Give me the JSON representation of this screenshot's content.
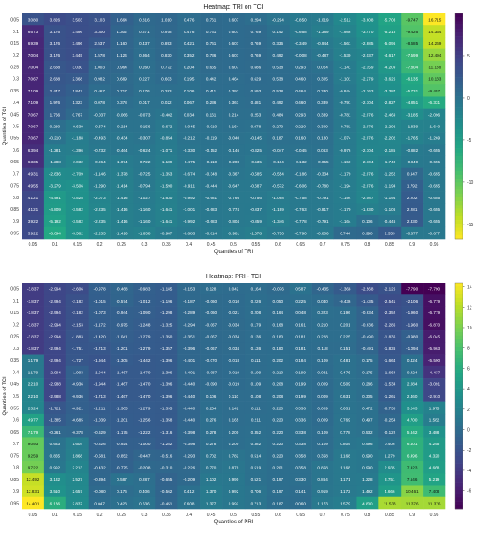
{
  "chart_data": [
    {
      "type": "heatmap",
      "title": "Heatmap: TRI on TCI",
      "xlabel": "Quantiles of TRI",
      "ylabel": "Quantiles of TCI",
      "x": [
        "0.05",
        "0.1",
        "0.15",
        "0.2",
        "0.25",
        "0.3",
        "0.35",
        "0.4",
        "0.45",
        "0.5",
        "0.55",
        "0.6",
        "0.65",
        "0.7",
        "0.75",
        "0.8",
        "0.85",
        "0.9",
        "0.95"
      ],
      "y": [
        "0.05",
        "0.1",
        "0.15",
        "0.2",
        "0.25",
        "0.3",
        "0.35",
        "0.4",
        "0.45",
        "0.5",
        "0.55",
        "0.6",
        "0.65",
        "0.7",
        "0.75",
        "0.8",
        "0.85",
        "0.9",
        "0.95"
      ],
      "colorbar_ticks": [
        5,
        0,
        -5,
        -10,
        -15
      ],
      "colorscale": "viridis_r",
      "zlim": [
        -16.715,
        10
      ],
      "values": [
        [
          3.08,
          3.826,
          3.503,
          3.103,
          1.664,
          0.816,
          1.01,
          0.476,
          0.761,
          0.607,
          0.294,
          -0.294,
          -0.85,
          -1.019,
          -2.512,
          -3.608,
          -5.703,
          -9.747,
          -16.715
        ],
        [
          6.673,
          3.176,
          3.496,
          3.3,
          1.302,
          0.671,
          0.978,
          0.476,
          0.761,
          0.607,
          0.769,
          0.142,
          -0.668,
          -1.389,
          -1.986,
          -3.47,
          -5.218,
          -9.426,
          -14.364
        ],
        [
          6.939,
          3.176,
          3.496,
          2.537,
          1.16,
          0.437,
          0.893,
          0.421,
          0.761,
          0.607,
          0.769,
          0.336,
          -0.349,
          -0.944,
          -1.561,
          -2.885,
          -5.096,
          -8.685,
          -14.269
        ],
        [
          7.004,
          3.176,
          3.445,
          1.578,
          1.124,
          0.364,
          0.83,
          0.352,
          0.736,
          0.607,
          0.769,
          0.492,
          -0.008,
          -0.487,
          -1.53,
          -2.037,
          -4.617,
          -7.599,
          -12.494
        ],
        [
          7.004,
          2.688,
          3.03,
          1.003,
          0.964,
          0.26,
          0.772,
          0.204,
          0.665,
          0.607,
          0.686,
          0.538,
          0.293,
          0.024,
          -1.141,
          -2.359,
          -4.209,
          -7.804,
          -11.188
        ],
        [
          7.067,
          2.688,
          2.368,
          0.982,
          0.689,
          0.227,
          0.603,
          0.195,
          0.442,
          0.464,
          0.629,
          0.538,
          0.46,
          0.305,
          -1.101,
          -2.279,
          -3.626,
          -6.135,
          -10.133
        ],
        [
          7.109,
          2.447,
          1.847,
          0.467,
          0.717,
          0.176,
          0.283,
          0.106,
          0.411,
          0.397,
          0.593,
          0.538,
          0.464,
          0.33,
          -0.844,
          -2.163,
          -3.387,
          -5.731,
          -9.457
        ],
        [
          7.109,
          1.976,
          1.323,
          0.078,
          0.378,
          0.017,
          0.022,
          0.067,
          0.236,
          0.361,
          0.481,
          0.492,
          0.46,
          0.339,
          -0.791,
          -2.104,
          -2.827,
          -4.851,
          -6.331
        ],
        [
          7.067,
          1.766,
          0.767,
          -0.037,
          -0.066,
          -0.073,
          -0.402,
          0.034,
          0.161,
          0.214,
          0.253,
          0.484,
          0.293,
          0.339,
          -0.781,
          -2.076,
          -2.469,
          -3.185,
          -2.096
        ],
        [
          7.067,
          0.28,
          -0.63,
          -0.374,
          -0.214,
          -0.156,
          -0.672,
          -0.045,
          -0.01,
          0.164,
          0.078,
          0.27,
          0.22,
          0.309,
          -0.781,
          -2.076,
          -2.292,
          -1.839,
          -1.64
        ],
        [
          7.067,
          -0.21,
          -1.188,
          -0.493,
          -0.434,
          -0.307,
          -0.854,
          -0.212,
          -0.119,
          -0.04,
          -0.145,
          0.187,
          0.16,
          0.18,
          -1.074,
          -2.076,
          -2.202,
          -1.765,
          -1.269
        ],
        [
          6.394,
          -1.281,
          -1.396,
          -0.732,
          -0.464,
          -0.624,
          -1.071,
          -0.33,
          -0.152,
          -0.146,
          -0.325,
          -0.047,
          -0.045,
          0.063,
          -0.976,
          -2.104,
          -2.185,
          -0.882,
          -0.655
        ],
        [
          6.335,
          -1.288,
          -2.032,
          -0.964,
          -1.074,
          -0.722,
          -1.189,
          -0.475,
          -0.21,
          -0.208,
          -0.535,
          -0.184,
          -0.132,
          -0.055,
          -1.15,
          -2.104,
          -1.74,
          -0.849,
          -0.655
        ],
        [
          4.931,
          -2.836,
          -2.709,
          -1.146,
          -1.378,
          -0.725,
          -1.353,
          -0.674,
          -0.348,
          -0.367,
          -0.585,
          -0.554,
          -0.186,
          -0.334,
          -1.179,
          -2.076,
          -1.252,
          0.947,
          -0.655
        ],
        [
          4.955,
          -3.279,
          -3.506,
          -1.29,
          -1.414,
          -0.794,
          -1.59,
          -0.911,
          -0.444,
          -0.647,
          -0.687,
          -0.572,
          -0.606,
          -0.78,
          -1.194,
          -2.076,
          -1.194,
          1.792,
          -0.655
        ],
        [
          4.121,
          -4.491,
          -3.528,
          -2.073,
          -1.416,
          -1.027,
          -1.63,
          -0.992,
          -0.681,
          -0.766,
          -0.756,
          -1.098,
          -0.758,
          -0.791,
          -1.194,
          -2.087,
          -1.194,
          2.202,
          -0.655
        ],
        [
          4.121,
          -4.809,
          -3.582,
          -2.235,
          -1.416,
          -1.16,
          -1.641,
          -1.001,
          -0.683,
          -0.774,
          -0.837,
          -1.199,
          -0.763,
          -0.817,
          -1.17,
          -1.63,
          -1.106,
          2.281,
          -0.655
        ],
        [
          3.922,
          -5.192,
          -3.582,
          -2.235,
          -1.416,
          -1.16,
          -1.641,
          -0.992,
          -0.683,
          -0.804,
          -0.859,
          -1.346,
          -0.778,
          -0.791,
          -1.164,
          0.106,
          -0.446,
          2.33,
          -0.655
        ],
        [
          3.922,
          -6.094,
          -3.582,
          -2.235,
          -1.416,
          -1.638,
          -0.987,
          -0.683,
          -0.814,
          -0.981,
          -1.378,
          -0.756,
          -0.79,
          -0.806,
          0.744,
          0.99,
          2.353,
          -0.677,
          -0.677
        ]
      ]
    },
    {
      "type": "heatmap",
      "title": "Heatmap: PRI - TCI",
      "xlabel": "Quantiles of PRI",
      "ylabel": "Quantiles of TCI",
      "x": [
        "0.05",
        "0.1",
        "0.15",
        "0.2",
        "0.25",
        "0.3",
        "0.35",
        "0.4",
        "0.45",
        "0.5",
        "0.55",
        "0.6",
        "0.65",
        "0.7",
        "0.75",
        "0.8",
        "0.85",
        "0.9",
        "0.95"
      ],
      "y": [
        "0.05",
        "0.1",
        "0.15",
        "0.2",
        "0.25",
        "0.3",
        "0.35",
        "0.4",
        "0.45",
        "0.5",
        "0.55",
        "0.6",
        "0.65",
        "0.7",
        "0.75",
        "0.8",
        "0.85",
        "0.9",
        "0.95"
      ],
      "colorbar_ticks": [
        14,
        12,
        10,
        8,
        6,
        4,
        2,
        0,
        -2,
        -4,
        -6
      ],
      "colorscale": "viridis",
      "zlim": [
        -7.79,
        14.401
      ],
      "values": [
        [
          -3.837,
          -2.994,
          -2.606,
          -0.978,
          -0.468,
          -0.983,
          -1.185,
          -0.153,
          0.128,
          0.042,
          0.164,
          -0.076,
          0.587,
          -0.435,
          -1.368,
          -2.568,
          -2.126,
          -7.79,
          -7.79
        ],
        [
          -3.837,
          -2.994,
          -2.182,
          -1.015,
          -0.574,
          -1.012,
          -1.196,
          -0.187,
          -0.06,
          -0.01,
          0.226,
          0.05,
          0.225,
          0.04,
          -0.436,
          -1.435,
          -2.541,
          -2.106,
          -6.779
        ],
        [
          -3.837,
          -2.994,
          -2.182,
          -1.073,
          -0.944,
          -1.09,
          -1.298,
          -0.289,
          -0.06,
          -0.021,
          0.208,
          0.164,
          0.048,
          0.323,
          0.196,
          -0.634,
          -2.352,
          -1.96,
          -6.779
        ],
        [
          -3.837,
          -2.994,
          -2.153,
          -1.172,
          -0.975,
          -1.248,
          -1.325,
          -0.294,
          -0.067,
          -0.034,
          0.179,
          0.168,
          0.161,
          0.21,
          0.201,
          -0.636,
          -2.286,
          -1.96,
          -6.87
        ],
        [
          -3.837,
          -2.994,
          -1.883,
          -1.42,
          -1.041,
          -1.279,
          -1.35,
          -0.351,
          -0.067,
          -0.034,
          0.136,
          0.18,
          0.181,
          0.228,
          0.225,
          -0.49,
          -1.836,
          -0.98,
          -6.045
        ],
        [
          -3.837,
          -2.994,
          -1.751,
          -1.713,
          -1.201,
          -1.279,
          -1.357,
          -0.396,
          -0.067,
          -0.034,
          0.136,
          0.18,
          0.181,
          0.118,
          0.151,
          -0.491,
          -1.836,
          -1.094,
          -5.963
        ],
        [
          1.179,
          -2.994,
          -1.727,
          -1.944,
          -1.305,
          -1.442,
          -1.396,
          -0.401,
          -0.07,
          -0.018,
          0.111,
          0.202,
          0.184,
          0.109,
          0.481,
          0.175,
          -1.664,
          0.424,
          -5.59
        ],
        [
          1.179,
          -2.994,
          -1.003,
          -1.944,
          -1.467,
          -1.47,
          -1.396,
          -0.401,
          -0.087,
          -0.019,
          0.109,
          0.21,
          0.199,
          0.031,
          0.476,
          0.175,
          -1.664,
          0.424,
          -4.437
        ],
        [
          2.21,
          -2.988,
          -0.936,
          -1.944,
          -1.467,
          -1.47,
          -1.396,
          -0.44,
          -0.09,
          -0.019,
          0.109,
          0.208,
          0.199,
          0.009,
          0.509,
          0.286,
          -1.534,
          2.084,
          -3.091
        ],
        [
          2.21,
          -2.988,
          -0.936,
          -1.713,
          -1.467,
          -1.47,
          -1.396,
          -0.44,
          0.106,
          0.11,
          0.108,
          0.208,
          0.199,
          0.009,
          0.631,
          0.305,
          -1.261,
          2.46,
          -2.91
        ],
        [
          2.324,
          -1.721,
          -0.921,
          -1.211,
          -1.305,
          -1.279,
          -1.395,
          -0.44,
          0.264,
          0.142,
          0.111,
          0.22,
          0.336,
          0.009,
          0.631,
          0.472,
          -0.738,
          3.243,
          1.975
        ],
        [
          4.977,
          -1.385,
          -0.685,
          -1.039,
          -1.201,
          -1.256,
          -1.358,
          -0.44,
          0.276,
          0.165,
          0.211,
          0.22,
          0.336,
          0.009,
          0.769,
          0.497,
          -0.254,
          4.7,
          1.582
        ],
        [
          7.179,
          -0.261,
          -0.378,
          -0.629,
          -1.175,
          -1.222,
          -1.316,
          -0.398,
          0.278,
          0.2,
          0.352,
          0.22,
          0.338,
          0.109,
          0.778,
          0.532,
          -0.122,
          5.842,
          3.488
        ],
        [
          9.093,
          0.633,
          1.604,
          -0.826,
          -0.924,
          -1.0,
          -1.282,
          -0.398,
          0.278,
          0.2,
          0.382,
          0.22,
          0.338,
          0.109,
          0.809,
          0.996,
          0.406,
          6.401,
          4.295
        ],
        [
          9.259,
          0.865,
          1.868,
          -0.581,
          -0.852,
          -0.447,
          -0.516,
          -0.293,
          0.702,
          0.782,
          0.514,
          0.22,
          0.358,
          0.358,
          1.168,
          0.99,
          1.279,
          6.496,
          4.32
        ],
        [
          9.722,
          0.992,
          2.213,
          -0.432,
          -0.775,
          -0.208,
          -0.31,
          -0.226,
          0.77,
          0.879,
          0.519,
          0.201,
          0.358,
          0.858,
          1.168,
          0.99,
          2.935,
          7.423,
          4.668
        ],
        [
          12.492,
          3.132,
          2.527,
          -0.394,
          0.587,
          0.287,
          -0.655,
          -0.209,
          1.102,
          0.99,
          0.521,
          0.197,
          0.33,
          0.864,
          1.171,
          1.228,
          3.751,
          7.546,
          5.219
        ],
        [
          12.831,
          3.51,
          2.657,
          -0.08,
          0.176,
          0.406,
          -0.562,
          0.412,
          1.37,
          0.992,
          0.706,
          0.197,
          0.141,
          0.919,
          1.172,
          1.492,
          4.666,
          10.461,
          7.408
        ],
        [
          14.401,
          6.136,
          2.837,
          0.047,
          0.423,
          0.636,
          -0.451,
          0.608,
          1.377,
          0.992,
          0.713,
          0.187,
          0.06,
          1.173,
          1.579,
          4.8,
          11.533,
          11.376,
          11.376
        ]
      ]
    }
  ]
}
